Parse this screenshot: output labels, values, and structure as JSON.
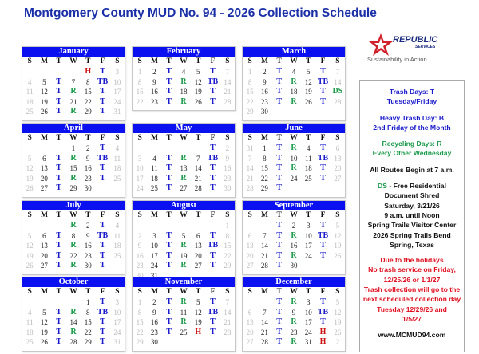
{
  "title": "Montgomery County MUD No. 94 - 2026 Collection Schedule",
  "day_headers": [
    "S",
    "M",
    "T",
    "W",
    "T",
    "F",
    "S"
  ],
  "colors": {
    "header_bar": "#0a10f0",
    "trash": "#1a1acc",
    "recycling": "#1a9a4a",
    "holiday": "#cc1111",
    "weekend": "#bbbbbb"
  },
  "months": [
    {
      "name": "January",
      "weeks": [
        [
          "",
          "",
          "",
          "",
          "H",
          "T",
          "3"
        ],
        [
          "4",
          "5",
          "T",
          "7",
          "8",
          "TB",
          "10"
        ],
        [
          "11",
          "12",
          "T",
          "R",
          "15",
          "T",
          "17"
        ],
        [
          "18",
          "19",
          "T",
          "21",
          "22",
          "T",
          "24"
        ],
        [
          "25",
          "26",
          "T",
          "R",
          "29",
          "T",
          "31"
        ]
      ]
    },
    {
      "name": "February",
      "weeks": [
        [
          "1",
          "2",
          "T",
          "4",
          "5",
          "T",
          "7"
        ],
        [
          "8",
          "9",
          "T",
          "R",
          "12",
          "TB",
          "14"
        ],
        [
          "15",
          "16",
          "T",
          "18",
          "19",
          "T",
          "21"
        ],
        [
          "22",
          "23",
          "T",
          "R",
          "26",
          "T",
          "28"
        ]
      ]
    },
    {
      "name": "March",
      "weeks": [
        [
          "1",
          "2",
          "T",
          "4",
          "5",
          "T",
          "7"
        ],
        [
          "8",
          "9",
          "T",
          "R",
          "12",
          "TB",
          "14"
        ],
        [
          "15",
          "16",
          "T",
          "18",
          "19",
          "T",
          "DS"
        ],
        [
          "22",
          "23",
          "T",
          "R",
          "26",
          "T",
          "28"
        ],
        [
          "29",
          "30",
          "",
          "",
          "",
          "",
          ""
        ]
      ]
    },
    {
      "name": "April",
      "weeks": [
        [
          "",
          "",
          "",
          "1",
          "2",
          "T",
          "4"
        ],
        [
          "5",
          "6",
          "T",
          "R",
          "9",
          "TB",
          "11"
        ],
        [
          "12",
          "13",
          "T",
          "15",
          "16",
          "T",
          "18"
        ],
        [
          "19",
          "20",
          "T",
          "R",
          "23",
          "T",
          "25"
        ],
        [
          "26",
          "27",
          "T",
          "29",
          "30",
          "",
          ""
        ]
      ]
    },
    {
      "name": "May",
      "weeks": [
        [
          "",
          "",
          "",
          "",
          "",
          "T",
          "2"
        ],
        [
          "3",
          "4",
          "T",
          "R",
          "7",
          "TB",
          "9"
        ],
        [
          "10",
          "11",
          "T",
          "13",
          "14",
          "T",
          "16"
        ],
        [
          "17",
          "18",
          "T",
          "R",
          "21",
          "T",
          "23"
        ],
        [
          "24",
          "25",
          "T",
          "27",
          "28",
          "T",
          "30"
        ]
      ]
    },
    {
      "name": "June",
      "weeks": [
        [
          "31",
          "1",
          "T",
          "R",
          "4",
          "T",
          "6"
        ],
        [
          "7",
          "8",
          "T",
          "10",
          "11",
          "TB",
          "13"
        ],
        [
          "14",
          "15",
          "T",
          "R",
          "18",
          "T",
          "20"
        ],
        [
          "21",
          "22",
          "T",
          "24",
          "25",
          "T",
          "27"
        ],
        [
          "28",
          "29",
          "T",
          "",
          "",
          "",
          ""
        ]
      ]
    },
    {
      "name": "July",
      "weeks": [
        [
          "",
          "",
          "",
          "R",
          "2",
          "T",
          "4"
        ],
        [
          "5",
          "6",
          "T",
          "8",
          "9",
          "TB",
          "11"
        ],
        [
          "12",
          "13",
          "T",
          "R",
          "16",
          "T",
          "18"
        ],
        [
          "19",
          "20",
          "T",
          "22",
          "23",
          "T",
          "25"
        ],
        [
          "26",
          "27",
          "T",
          "R",
          "30",
          "T",
          ""
        ]
      ]
    },
    {
      "name": "August",
      "weeks": [
        [
          "",
          "",
          "",
          "",
          "",
          "",
          "1"
        ],
        [
          "2",
          "3",
          "T",
          "5",
          "6",
          "T",
          "8"
        ],
        [
          "9",
          "10",
          "T",
          "R",
          "13",
          "TB",
          "15"
        ],
        [
          "16",
          "17",
          "T",
          "19",
          "20",
          "T",
          "22"
        ],
        [
          "23",
          "24",
          "T",
          "R",
          "27",
          "T",
          "29"
        ],
        [
          "30",
          "31",
          "",
          "",
          "",
          "",
          ""
        ]
      ]
    },
    {
      "name": "September",
      "weeks": [
        [
          "",
          "",
          "T",
          "2",
          "3",
          "T",
          "5"
        ],
        [
          "6",
          "7",
          "T",
          "R",
          "10",
          "TB",
          "12"
        ],
        [
          "13",
          "14",
          "T",
          "16",
          "17",
          "T",
          "19"
        ],
        [
          "20",
          "21",
          "T",
          "R",
          "24",
          "T",
          "26"
        ],
        [
          "27",
          "28",
          "T",
          "30",
          "",
          "",
          ""
        ]
      ]
    },
    {
      "name": "October",
      "weeks": [
        [
          "",
          "",
          "",
          "",
          "1",
          "T",
          "3"
        ],
        [
          "4",
          "5",
          "T",
          "R",
          "8",
          "TB",
          "10"
        ],
        [
          "11",
          "12",
          "T",
          "14",
          "15",
          "T",
          "17"
        ],
        [
          "18",
          "19",
          "T",
          "R",
          "22",
          "T",
          "24"
        ],
        [
          "25",
          "26",
          "T",
          "28",
          "29",
          "T",
          "31"
        ]
      ]
    },
    {
      "name": "November",
      "weeks": [
        [
          "1",
          "2",
          "T",
          "R",
          "5",
          "T",
          "7"
        ],
        [
          "8",
          "9",
          "T",
          "11",
          "12",
          "TB",
          "14"
        ],
        [
          "15",
          "16",
          "T",
          "R",
          "19",
          "T",
          "21"
        ],
        [
          "22",
          "23",
          "T",
          "25",
          "H",
          "T",
          "28"
        ],
        [
          "29",
          "30",
          "",
          "",
          "",
          "",
          ""
        ]
      ]
    },
    {
      "name": "December",
      "weeks": [
        [
          "",
          "",
          "T",
          "R",
          "3",
          "T",
          "5"
        ],
        [
          "6",
          "7",
          "T",
          "9",
          "10",
          "TB",
          "12"
        ],
        [
          "13",
          "14",
          "T",
          "R",
          "17",
          "T",
          "19"
        ],
        [
          "20",
          "21",
          "T",
          "23",
          "24",
          "H",
          "26"
        ],
        [
          "27",
          "28",
          "T",
          "R",
          "31",
          "H",
          "2"
        ]
      ]
    }
  ],
  "logo": {
    "brand": "REPUBLIC",
    "sub": "SERVICES",
    "tagline": "Sustainability in Action",
    "icon": "republic-star-logo"
  },
  "legend": {
    "trash_1": "Trash Days: T",
    "trash_2": "Tuesday/Friday",
    "heavy_1": "Heavy Trash Day: B",
    "heavy_2": "2nd Friday of the Month",
    "recycle_1": "Recycling Days: R",
    "recycle_2": "Every Other Wednesday",
    "routes": "All Routes Begin at 7 a.m.",
    "ds_code": "DS",
    "ds_text": " - Free Residential",
    "shred_lines": [
      "Document Shred",
      "Saturday, 3/21/26",
      "9 a.m. until Noon",
      "Spring Trails Visitor Center",
      "2026 Spring Trails Bend",
      "Spring, Texas"
    ],
    "holiday_lines": [
      "Due to the holidays",
      "No trash service on Friday,",
      "12/25/26 or 1/1/27",
      "Trash collection will go to the",
      "next scheduled collection day",
      "Tuesday 12/29/26 and",
      "1/5/27"
    ],
    "website": "www.MCMUD94.com"
  }
}
